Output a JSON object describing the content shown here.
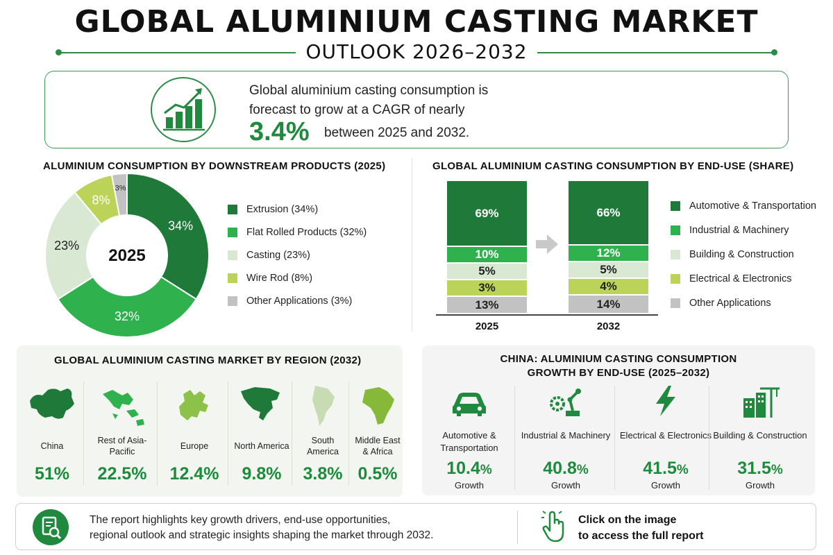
{
  "header": {
    "title": "GLOBAL ALUMINIUM CASTING MARKET",
    "subtitle": "OUTLOOK 2026–2032"
  },
  "cagr": {
    "line1": "Global aluminium casting consumption is",
    "line2": "forecast to grow at a CAGR of nearly",
    "value": "3.4%",
    "suffix": "between 2025 and 2032.",
    "icon": "growth-chart-icon"
  },
  "colors": {
    "dark_green": "#1f7a3a",
    "green": "#2fb24e",
    "light_green": "#d8e8d3",
    "yellow_green": "#bcd35a",
    "gray": "#c2c2c2",
    "accent": "#1e8a3c"
  },
  "chart_data": [
    {
      "type": "pie",
      "title": "ALUMINIUM CONSUMPTION BY DOWNSTREAM PRODUCTS (2025)",
      "center_label": "2025",
      "categories": [
        "Extrusion",
        "Flat Rolled Products",
        "Casting",
        "Wire Rod",
        "Other Applications"
      ],
      "values": [
        34,
        32,
        23,
        8,
        3
      ],
      "value_labels": [
        "34%",
        "32%",
        "23%",
        "8%",
        "3%"
      ],
      "legend": [
        "Extrusion (34%)",
        "Flat Rolled Products (32%)",
        "Casting (23%)",
        "Wire Rod (8%)",
        "Other Applications (3%)"
      ],
      "colors": [
        "#1f7a3a",
        "#2fb24e",
        "#d8e8d3",
        "#bcd35a",
        "#c2c2c2"
      ],
      "legend_position": "right"
    },
    {
      "type": "bar",
      "stacked": true,
      "title": "GLOBAL ALUMINIUM CASTING CONSUMPTION BY END-USE (SHARE)",
      "categories": [
        "2025",
        "2032"
      ],
      "series": [
        {
          "name": "Automotive & Transportation",
          "values": [
            69,
            66
          ],
          "labels": [
            "69%",
            "66%"
          ],
          "color": "#1f7a3a"
        },
        {
          "name": "Industrial & Machinery",
          "values": [
            10,
            12
          ],
          "labels": [
            "10%",
            "12%"
          ],
          "color": "#2fb24e"
        },
        {
          "name": "Building & Construction",
          "values": [
            5,
            5
          ],
          "labels": [
            "5%",
            "5%"
          ],
          "color": "#d8e8d3"
        },
        {
          "name": "Electrical & Electronics",
          "values": [
            3,
            4
          ],
          "labels": [
            "3%",
            "4%"
          ],
          "color": "#bcd35a"
        },
        {
          "name": "Other Applications",
          "values": [
            13,
            14
          ],
          "labels": [
            "13%",
            "14%"
          ],
          "color": "#c2c2c2"
        }
      ],
      "legend_position": "right"
    }
  ],
  "region": {
    "title": "GLOBAL ALUMINIUM CASTING MARKET BY REGION (2032)",
    "items": [
      {
        "name": "China",
        "value": "51%",
        "share": 51,
        "icon": "china-map-icon",
        "color": "#1f7a3a"
      },
      {
        "name": "Rest of Asia-Pacific",
        "value": "22.5%",
        "share": 22.5,
        "icon": "asia-pacific-map-icon",
        "color": "#2fb24e"
      },
      {
        "name": "Europe",
        "value": "12.4%",
        "share": 12.4,
        "icon": "europe-map-icon",
        "color": "#8cc14a"
      },
      {
        "name": "North America",
        "value": "9.8%",
        "share": 9.8,
        "icon": "north-america-map-icon",
        "color": "#1f7a3a"
      },
      {
        "name": "South America",
        "value": "3.8%",
        "share": 3.8,
        "icon": "south-america-map-icon",
        "color": "#c8dcb4"
      },
      {
        "name": "Middle East & Africa",
        "value": "0.5%",
        "share": 0.5,
        "icon": "africa-map-icon",
        "color": "#86b83a"
      }
    ]
  },
  "china": {
    "title_line1": "CHINA: ALUMINIUM CASTING CONSUMPTION",
    "title_line2": "GROWTH BY END-USE (2025–2032)",
    "items": [
      {
        "label": "Automotive & Transportation",
        "value": "10.4",
        "unit": "%",
        "growth": "Growth",
        "icon": "car-icon"
      },
      {
        "label": "Industrial & Machinery",
        "value": "40.8",
        "unit": "%",
        "growth": "Growth",
        "icon": "robot-arm-icon"
      },
      {
        "label": "Electrical & Electronics",
        "value": "41.5",
        "unit": "%",
        "growth": "Growth",
        "icon": "lightning-icon"
      },
      {
        "label": "Building & Construction",
        "value": "31.5",
        "unit": "%",
        "growth": "Growth",
        "icon": "buildings-crane-icon"
      }
    ]
  },
  "footer": {
    "text_line1": "The report highlights key growth drivers, end-use opportunities,",
    "text_line2": "regional outlook and strategic insights shaping the market through 2032.",
    "cta_line1": "Click on the image",
    "cta_line2": "to access the full report",
    "report_icon": "report-search-icon",
    "hand_icon": "hand-click-icon"
  }
}
